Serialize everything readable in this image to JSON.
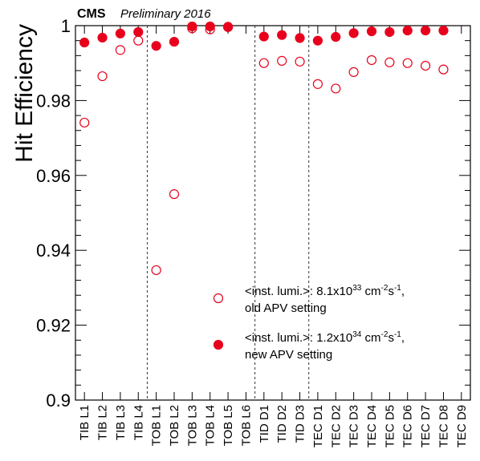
{
  "header": {
    "experiment": "CMS",
    "status": "Preliminary 2016"
  },
  "chart_data": {
    "type": "scatter",
    "ylabel": "Hit Efficiency",
    "ylim": [
      0.9,
      1.0
    ],
    "yticks": [
      0.9,
      0.92,
      0.94,
      0.96,
      0.98,
      1
    ],
    "ytick_labels": [
      "0.9",
      "0.92",
      "0.94",
      "0.96",
      "0.98",
      "1"
    ],
    "categories": [
      "TIB L1",
      "TIB L2",
      "TIB L3",
      "TIB L4",
      "TOB L1",
      "TOB L2",
      "TOB L3",
      "TOB L4",
      "TOB L5",
      "TOB L6",
      "TID D1",
      "TID D2",
      "TID D3",
      "TEC D1",
      "TEC D2",
      "TEC D3",
      "TEC D4",
      "TEC D5",
      "TEC D6",
      "TEC D7",
      "TEC D8",
      "TEC D9"
    ],
    "region_separators_after": [
      "TIB L4",
      "TOB L6",
      "TID D3"
    ],
    "grid": false,
    "legend_position": "bottom-right",
    "series": [
      {
        "name": "old",
        "marker": "open-circle",
        "color": "#e8001c",
        "legend_line1_main": "<inst. lumi.>: 8.1x10",
        "legend_line1_exp": "33",
        "legend_line1_unit": " cm",
        "legend_line1_unit_exp": "-2",
        "legend_line1_end": "s",
        "legend_line1_end_exp": "-1",
        "legend_line1_tail": ",",
        "legend_line2": "old APV setting",
        "values": [
          0.9741,
          0.9865,
          0.9935,
          0.996,
          0.9347,
          0.955,
          0.9993,
          0.999,
          0.9997,
          null,
          0.99,
          0.9906,
          0.9904,
          0.9844,
          0.9832,
          0.9876,
          0.9908,
          0.9902,
          0.99,
          0.9893,
          0.9883,
          null
        ]
      },
      {
        "name": "new",
        "marker": "filled-circle",
        "color": "#e8001c",
        "legend_line1_main": "<inst. lumi.>: 1.2x10",
        "legend_line1_exp": "34",
        "legend_line1_unit": " cm",
        "legend_line1_unit_exp": "-2",
        "legend_line1_end": "s",
        "legend_line1_end_exp": "-1",
        "legend_line1_tail": ",",
        "legend_line2": "new APV setting",
        "values": [
          0.9955,
          0.9968,
          0.9979,
          0.9983,
          0.9946,
          0.9957,
          0.9998,
          0.9998,
          0.9996,
          null,
          0.9971,
          0.9975,
          0.9967,
          0.996,
          0.997,
          0.998,
          0.9985,
          0.9983,
          0.9987,
          0.9987,
          0.9987,
          null
        ]
      }
    ]
  }
}
